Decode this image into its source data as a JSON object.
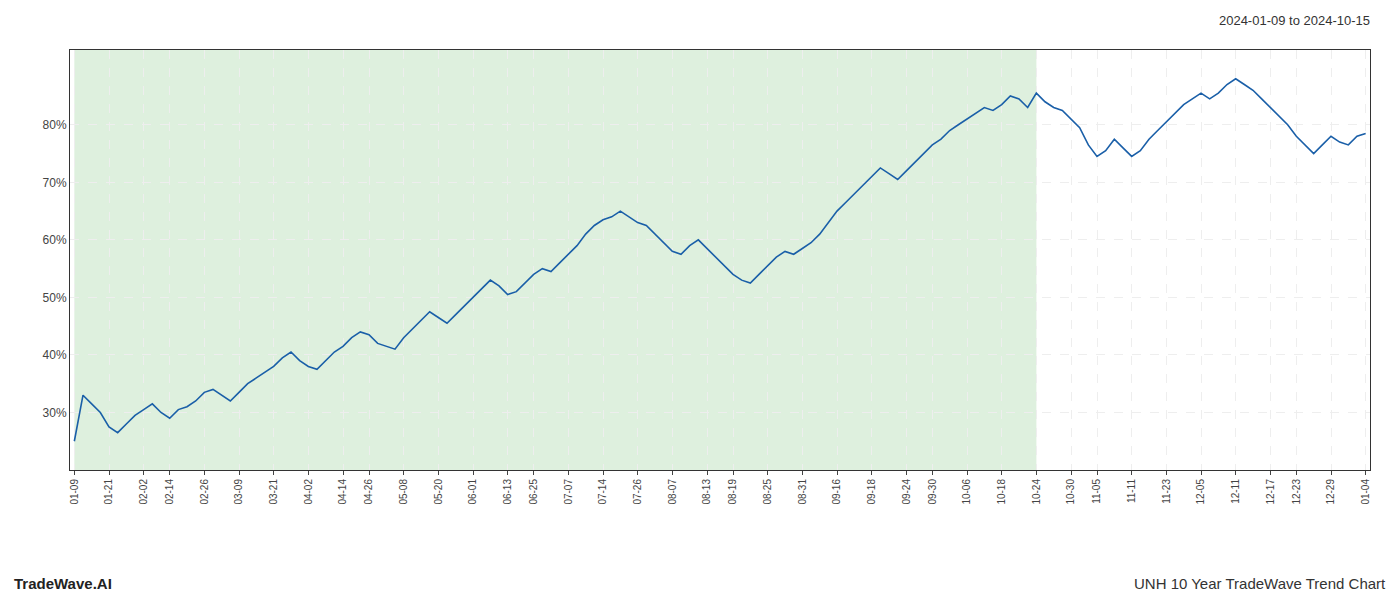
{
  "chart_data": {
    "type": "line",
    "title": "2024-01-09 to 2024-10-15",
    "annotations": [
      {
        "text": "TradeWave.AI"
      },
      {
        "text": "UNH 10 Year TradeWave Trend Chart"
      }
    ],
    "categories": [
      "01-09",
      null,
      null,
      null,
      "01-21",
      null,
      null,
      null,
      "02-02",
      null,
      null,
      "02-14",
      null,
      null,
      null,
      "02-26",
      null,
      null,
      null,
      "03-09",
      null,
      null,
      null,
      "03-21",
      null,
      null,
      null,
      "04-02",
      null,
      null,
      null,
      "04-14",
      null,
      null,
      "04-26",
      null,
      null,
      null,
      "05-08",
      null,
      null,
      null,
      "05-20",
      null,
      null,
      null,
      "06-01",
      null,
      null,
      null,
      "06-13",
      null,
      null,
      "06-25",
      null,
      null,
      null,
      "07-07",
      null,
      null,
      null,
      "07-14",
      null,
      null,
      null,
      "07-26",
      null,
      null,
      null,
      "08-07",
      null,
      null,
      null,
      "08-13",
      null,
      null,
      "08-19",
      null,
      null,
      null,
      "08-25",
      null,
      null,
      null,
      "08-31",
      null,
      null,
      null,
      "09-16",
      null,
      null,
      null,
      "09-18",
      null,
      null,
      null,
      "09-24",
      null,
      null,
      "09-30",
      null,
      null,
      null,
      "10-06",
      null,
      null,
      null,
      "10-18",
      null,
      null,
      null,
      "10-24",
      null,
      null,
      null,
      "10-30",
      null,
      null,
      "11-05",
      null,
      null,
      null,
      "11-11",
      null,
      null,
      null,
      "11-23",
      null,
      null,
      null,
      "12-05",
      null,
      null,
      null,
      "12-11",
      null,
      null,
      null,
      "12-17",
      null,
      null,
      "12-23",
      null,
      null,
      null,
      "12-29",
      null,
      null,
      null,
      "01-04"
    ],
    "values": [
      25.0,
      33.0,
      31.5,
      30.0,
      27.5,
      26.5,
      28.0,
      29.5,
      30.5,
      31.5,
      30.0,
      29.0,
      30.5,
      31.0,
      32.0,
      33.5,
      34.0,
      33.0,
      32.0,
      33.5,
      35.0,
      36.0,
      37.0,
      38.0,
      39.5,
      40.5,
      39.0,
      38.0,
      37.5,
      39.0,
      40.5,
      41.5,
      43.0,
      44.0,
      43.5,
      42.0,
      41.5,
      41.0,
      43.0,
      44.5,
      46.0,
      47.5,
      46.5,
      45.5,
      47.0,
      48.5,
      50.0,
      51.5,
      53.0,
      52.0,
      50.5,
      51.0,
      52.5,
      54.0,
      55.0,
      54.5,
      56.0,
      57.5,
      59.0,
      61.0,
      62.5,
      63.5,
      64.0,
      65.0,
      64.0,
      63.0,
      62.5,
      61.0,
      59.5,
      58.0,
      57.5,
      59.0,
      60.0,
      58.5,
      57.0,
      55.5,
      54.0,
      53.0,
      52.5,
      54.0,
      55.5,
      57.0,
      58.0,
      57.5,
      58.5,
      59.5,
      61.0,
      63.0,
      65.0,
      66.5,
      68.0,
      69.5,
      71.0,
      72.5,
      71.5,
      70.5,
      72.0,
      73.5,
      75.0,
      76.5,
      77.5,
      79.0,
      80.0,
      81.0,
      82.0,
      83.0,
      82.5,
      83.5,
      85.0,
      84.5,
      83.0,
      85.5,
      84.0,
      83.0,
      82.5,
      81.0,
      79.5,
      76.5,
      74.5,
      75.5,
      77.5,
      76.0,
      74.5,
      75.5,
      77.5,
      79.0,
      80.5,
      82.0,
      83.5,
      84.5,
      85.5,
      84.5,
      85.5,
      87.0,
      88.0,
      87.0,
      86.0,
      84.5,
      83.0,
      81.5,
      80.0,
      78.0,
      76.5,
      75.0,
      76.5,
      78.0,
      77.0,
      76.5,
      78.0,
      78.5
    ],
    "color": "#1a5fa8",
    "shaded_region": {
      "x": [
        0,
        111.005
      ],
      "color": "#c8e6c8"
    },
    "ylim": [
      20,
      93
    ],
    "yticks": [
      {
        "value": 30,
        "label": "30%"
      },
      {
        "value": 40,
        "label": "40%"
      },
      {
        "value": 50,
        "label": "50%"
      },
      {
        "value": 60,
        "label": "60%"
      },
      {
        "value": 70,
        "label": "70%"
      },
      {
        "value": 80,
        "label": "80%"
      }
    ],
    "grid": true
  }
}
